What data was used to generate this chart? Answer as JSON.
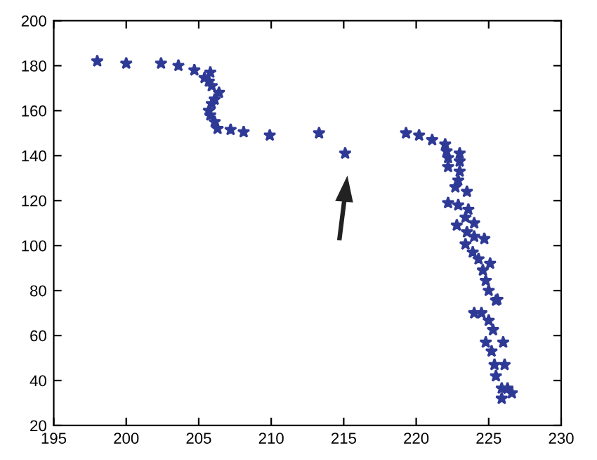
{
  "chart_data": {
    "type": "scatter",
    "marker": "star",
    "xlim": [
      195,
      230
    ],
    "ylim": [
      20,
      200
    ],
    "xticks": [
      195,
      200,
      205,
      210,
      215,
      220,
      225,
      230
    ],
    "yticks": [
      20,
      40,
      60,
      80,
      100,
      120,
      140,
      160,
      180,
      200
    ],
    "grid": false,
    "series": [
      {
        "color": "#2e3a96",
        "x": [
          198.0,
          200.0,
          202.4,
          203.6,
          204.7,
          205.8,
          205.4,
          205.7,
          205.9,
          206.4,
          206.1,
          205.9,
          205.7,
          205.8,
          206.1,
          206.3,
          207.2,
          208.1,
          209.9,
          213.3,
          215.1,
          219.3,
          220.2,
          221.1,
          222.0,
          222.1,
          222.2,
          222.2,
          223.0,
          223.0,
          223.0,
          222.9,
          222.7,
          223.5,
          222.2,
          222.9,
          223.6,
          223.4,
          224.0,
          222.8,
          223.5,
          224.0,
          224.7,
          223.4,
          223.9,
          224.3,
          225.1,
          224.6,
          224.8,
          225.0,
          225.5,
          224.0,
          224.5,
          225.0,
          225.3,
          224.8,
          225.2,
          225.4,
          225.5,
          225.9,
          225.9,
          226.6,
          226.3,
          226.1,
          226.0,
          225.6
        ],
        "values": [
          182,
          181,
          181,
          180,
          178,
          177,
          174.6,
          173,
          171,
          168,
          165,
          163,
          160,
          158,
          155,
          152,
          151.5,
          150.5,
          149,
          150,
          141,
          150,
          149,
          147,
          145,
          142,
          139,
          135,
          141,
          137.5,
          133,
          129,
          126,
          124,
          119,
          118,
          116,
          112.5,
          110,
          109,
          106,
          104,
          103,
          100.6,
          97,
          94,
          92,
          89,
          84.4,
          80,
          75.6,
          70,
          70,
          66.7,
          62.5,
          57,
          53,
          47,
          42,
          36.5,
          32,
          34.4,
          36.5,
          47,
          57,
          76
        ]
      }
    ]
  }
}
